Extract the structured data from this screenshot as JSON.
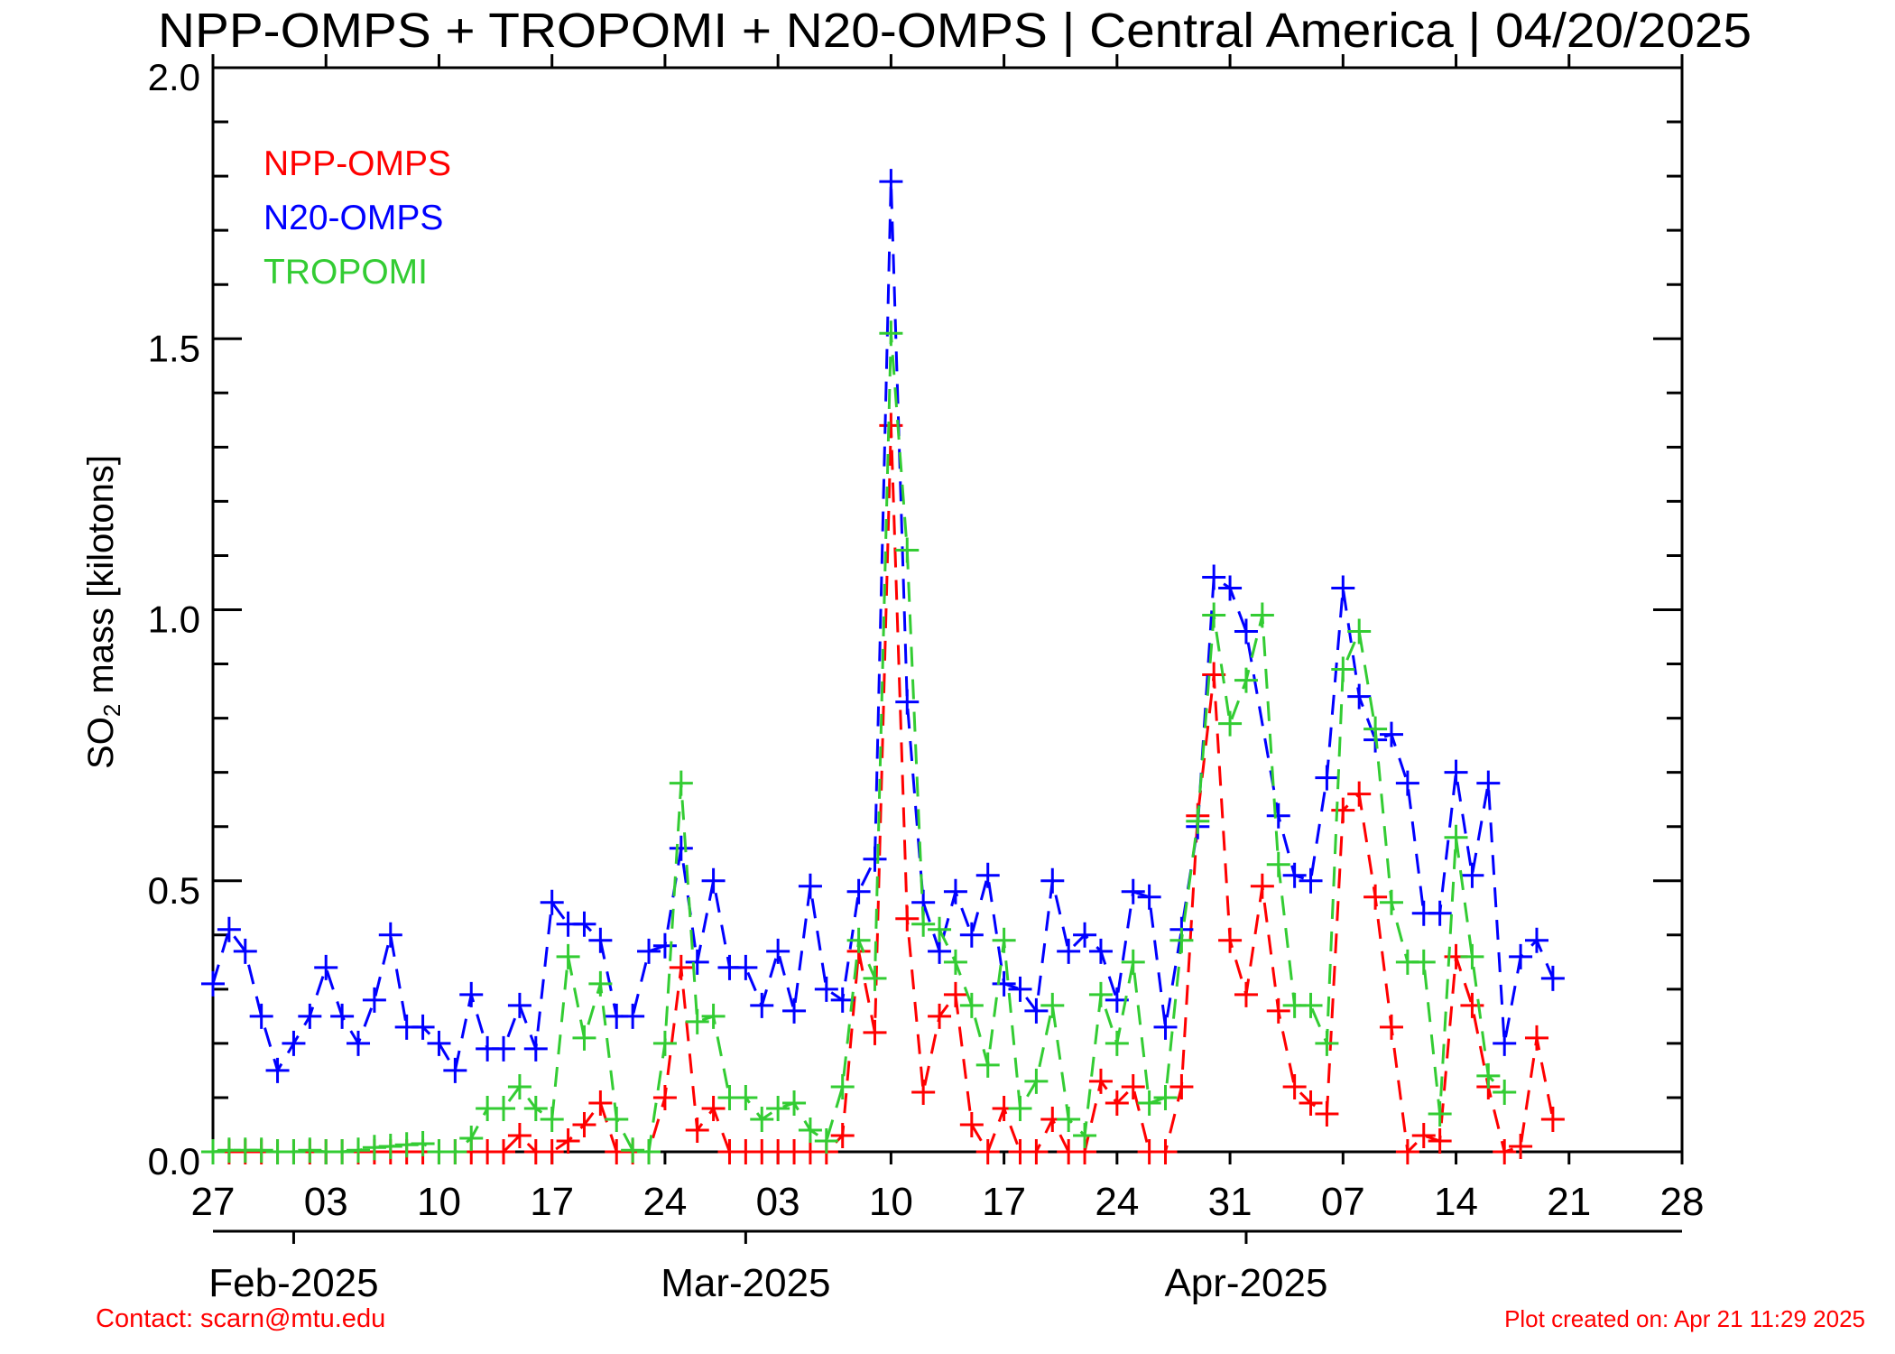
{
  "chart_data": {
    "type": "line",
    "title": "NPP-OMPS + TROPOMI + N20-OMPS | Central America | 04/20/2025",
    "ylabel_main": "SO",
    "ylabel_sub": "2",
    "ylabel_rest": " mass [kilotons]",
    "ylim": [
      0.0,
      2.0
    ],
    "y_major_ticks": [
      0.0,
      0.5,
      1.0,
      1.5,
      2.0
    ],
    "y_tick_labels": [
      "0.0",
      "0.5",
      "1.0",
      "1.5",
      "2.0"
    ],
    "y_minor_step": 0.1,
    "xlim": [
      "2025-01-27",
      "2025-04-28"
    ],
    "x_tick_labels": [
      "27",
      "03",
      "10",
      "17",
      "24",
      "03",
      "10",
      "17",
      "24",
      "31",
      "07",
      "14",
      "21",
      "28"
    ],
    "month_ticks": [
      {
        "date": "2025-02-01",
        "label": "Feb-2025"
      },
      {
        "date": "2025-03-01",
        "label": "Mar-2025"
      },
      {
        "date": "2025-04-01",
        "label": "Apr-2025"
      }
    ],
    "grid": false,
    "legend_position": "top-left",
    "marker": "plus",
    "line_style": "dashed",
    "x": [
      "2025-01-27",
      "2025-01-28",
      "2025-01-29",
      "2025-01-30",
      "2025-01-31",
      "2025-02-01",
      "2025-02-02",
      "2025-02-03",
      "2025-02-04",
      "2025-02-05",
      "2025-02-06",
      "2025-02-07",
      "2025-02-08",
      "2025-02-09",
      "2025-02-10",
      "2025-02-11",
      "2025-02-12",
      "2025-02-13",
      "2025-02-14",
      "2025-02-15",
      "2025-02-16",
      "2025-02-17",
      "2025-02-18",
      "2025-02-19",
      "2025-02-20",
      "2025-02-21",
      "2025-02-22",
      "2025-02-23",
      "2025-02-24",
      "2025-02-25",
      "2025-02-26",
      "2025-02-27",
      "2025-02-28",
      "2025-03-01",
      "2025-03-02",
      "2025-03-03",
      "2025-03-04",
      "2025-03-05",
      "2025-03-06",
      "2025-03-07",
      "2025-03-08",
      "2025-03-09",
      "2025-03-10",
      "2025-03-11",
      "2025-03-12",
      "2025-03-13",
      "2025-03-14",
      "2025-03-15",
      "2025-03-16",
      "2025-03-17",
      "2025-03-18",
      "2025-03-19",
      "2025-03-20",
      "2025-03-21",
      "2025-03-22",
      "2025-03-23",
      "2025-03-24",
      "2025-03-25",
      "2025-03-26",
      "2025-03-27",
      "2025-03-28",
      "2025-03-29",
      "2025-03-30",
      "2025-03-31",
      "2025-04-01",
      "2025-04-02",
      "2025-04-03",
      "2025-04-04",
      "2025-04-05",
      "2025-04-06",
      "2025-04-07",
      "2025-04-08",
      "2025-04-09",
      "2025-04-10",
      "2025-04-11",
      "2025-04-12",
      "2025-04-13",
      "2025-04-14",
      "2025-04-15",
      "2025-04-16",
      "2025-04-17",
      "2025-04-18",
      "2025-04-19",
      "2025-04-20"
    ],
    "series": [
      {
        "name": "NPP-OMPS",
        "color": "#ff0000",
        "values": [
          0,
          0,
          0,
          0,
          0,
          0,
          0,
          0,
          0,
          0,
          0,
          0,
          0,
          0,
          0,
          0,
          0,
          0,
          0,
          0.03,
          0,
          0,
          0.02,
          0.05,
          0.09,
          0,
          0,
          0,
          0.1,
          0.34,
          0.04,
          0.08,
          0,
          0,
          0,
          0,
          0,
          0,
          0,
          0.03,
          0.37,
          0.22,
          1.34,
          0.43,
          0.11,
          0.25,
          0.29,
          0.05,
          0,
          0.08,
          0,
          0,
          0.06,
          0,
          0,
          0.13,
          0.09,
          0.12,
          0,
          0,
          0.12,
          0.62,
          0.88,
          0.39,
          0.29,
          0.49,
          0.26,
          0.12,
          0.09,
          0.07,
          0.63,
          0.66,
          0.47,
          0.23,
          0,
          0.03,
          0.02,
          0.36,
          0.27,
          0.12,
          0,
          0.01,
          0.21,
          0.06
        ]
      },
      {
        "name": "N20-OMPS",
        "color": "#0000ff",
        "values": [
          0.31,
          0.41,
          0.37,
          0.25,
          0.15,
          0.2,
          0.25,
          0.34,
          0.25,
          0.2,
          0.28,
          0.4,
          0.23,
          0.23,
          0.2,
          0.15,
          0.29,
          0.19,
          0.19,
          0.27,
          0.19,
          0.46,
          0.42,
          0.42,
          0.39,
          0.25,
          0.25,
          0.37,
          0.38,
          0.56,
          0.35,
          0.5,
          0.34,
          0.34,
          0.27,
          0.37,
          0.26,
          0.49,
          0.3,
          0.28,
          0.48,
          0.54,
          1.79,
          0.83,
          0.46,
          0.37,
          0.48,
          0.4,
          0.51,
          0.31,
          0.3,
          0.26,
          0.5,
          0.37,
          0.4,
          0.37,
          0.28,
          0.48,
          0.47,
          0.23,
          0.41,
          0.6,
          1.06,
          1.04,
          0.96,
          null,
          0.62,
          0.51,
          0.5,
          0.69,
          1.04,
          0.84,
          0.76,
          0.77,
          0.68,
          0.44,
          0.44,
          0.7,
          0.51,
          0.68,
          0.2,
          0.36,
          0.39,
          0.32
        ]
      },
      {
        "name": "TROPOMI",
        "color": "#33cc33",
        "values": [
          0,
          0.003,
          0.003,
          0.003,
          0,
          0,
          0.003,
          0,
          0,
          0.003,
          0.008,
          0.01,
          0.013,
          0.015,
          0,
          0,
          0.025,
          0.08,
          0.08,
          0.12,
          0.08,
          0.06,
          0.36,
          0.21,
          0.31,
          0.06,
          0.003,
          0,
          0.2,
          0.68,
          0.24,
          0.25,
          0.1,
          0.1,
          0.06,
          0.08,
          0.09,
          0.04,
          0.02,
          0.12,
          0.39,
          0.32,
          1.51,
          1.11,
          0.42,
          0.41,
          0.35,
          0.27,
          0.16,
          0.39,
          0.08,
          0.13,
          0.27,
          0.06,
          0.03,
          0.29,
          0.2,
          0.35,
          0.09,
          0.1,
          0.39,
          0.61,
          0.99,
          0.79,
          0.87,
          0.99,
          0.53,
          0.27,
          0.27,
          0.2,
          0.89,
          0.96,
          0.78,
          0.46,
          0.35,
          0.35,
          0.07,
          0.58,
          0.36,
          0.14,
          0.11,
          null,
          null,
          null
        ]
      }
    ]
  },
  "footer": {
    "contact": "Contact: scarn@mtu.edu",
    "created": "Plot created on: Apr 21 11:29 2025"
  }
}
